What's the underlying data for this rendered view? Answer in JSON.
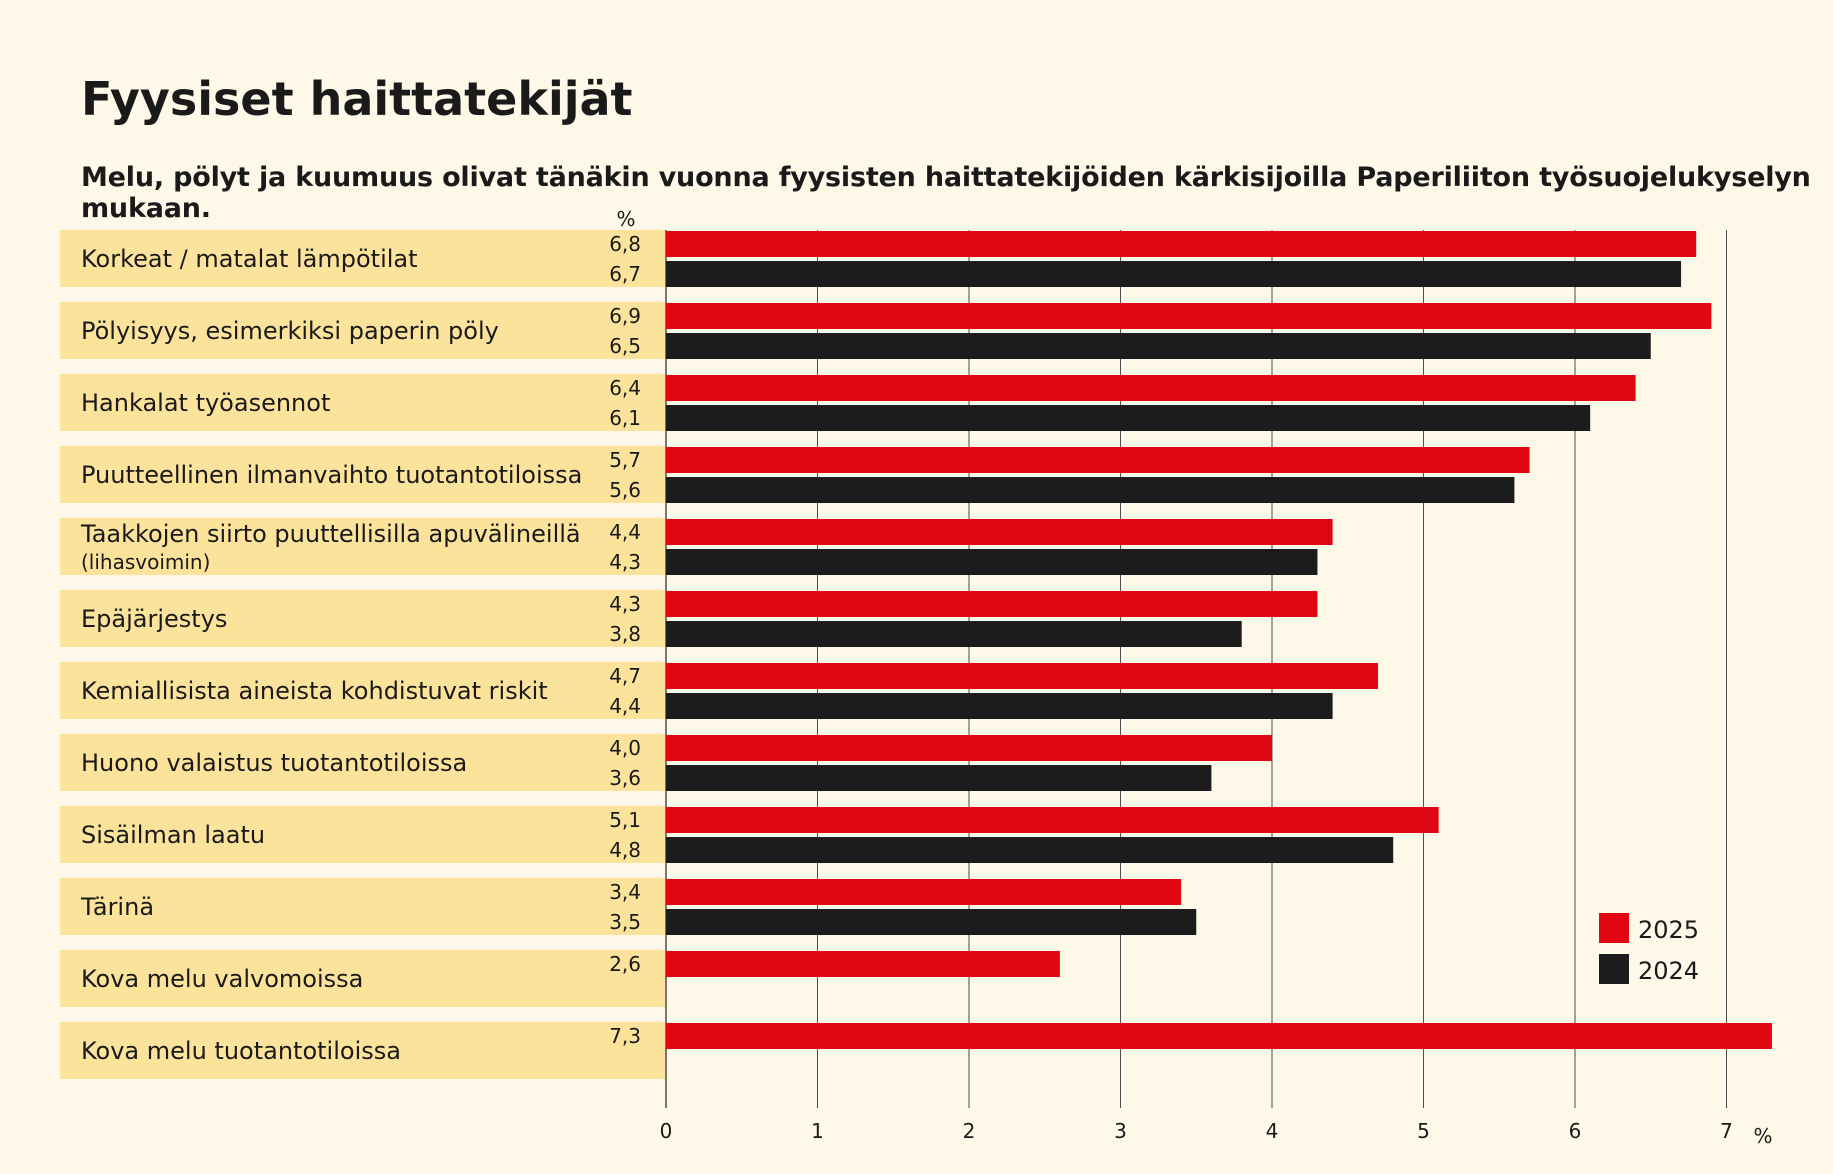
{
  "title": "Fyysiset haittatekijät",
  "subtitle": "Melu, pölyt ja kuumuus olivat tänäkin vuonna fyysisten haittatekijöiden kärkisijoilla Paperiliiton työsuojelukyselyn mukaan.",
  "colors": {
    "background": "#fdf8e8",
    "label_band": "#fbe39c",
    "series_2025": "#e00712",
    "series_2024": "#1c1c1c",
    "grid": "#4d4d4d"
  },
  "chart_data": {
    "type": "bar",
    "orientation": "horizontal",
    "value_unit_label": "%",
    "xlabel": "%",
    "xlim": [
      0,
      7
    ],
    "x_ticks": [
      "0",
      "1",
      "2",
      "3",
      "4",
      "5",
      "6",
      "7"
    ],
    "grid": "vertical",
    "legend_placement": "bottom-right",
    "categories": [
      [
        "Korkeat / matalat lämpötilat"
      ],
      [
        "Pölyisyys, esimerkiksi paperin pöly"
      ],
      [
        "Hankalat työasennot"
      ],
      [
        "Puutteellinen ilmanvaihto tuotantotiloissa"
      ],
      [
        "Taakkojen siirto puuttellisilla apuvälineillä",
        "(lihasvoimin)"
      ],
      [
        "Epäjärjestys"
      ],
      [
        "Kemiallisista aineista kohdistuvat riskit"
      ],
      [
        "Huono valaistus tuotantotiloissa"
      ],
      [
        "Sisäilman laatu"
      ],
      [
        "Tärinä"
      ],
      [
        "Kova melu valvomoissa"
      ],
      [
        "Kova melu tuotantotiloissa"
      ]
    ],
    "series": [
      {
        "name": "2025",
        "color": "#e00712",
        "values": [
          6.8,
          6.9,
          6.4,
          5.7,
          4.4,
          4.3,
          4.7,
          4.0,
          5.1,
          3.4,
          2.6,
          7.3
        ],
        "labels": [
          "6,8",
          "6,9",
          "6,4",
          "5,7",
          "4,4",
          "4,3",
          "4,7",
          "4,0",
          "5,1",
          "3,4",
          "2,6",
          "7,3"
        ]
      },
      {
        "name": "2024",
        "color": "#1c1c1c",
        "values": [
          6.7,
          6.5,
          6.1,
          5.6,
          4.3,
          3.8,
          4.4,
          3.6,
          4.8,
          3.5,
          null,
          null
        ],
        "labels": [
          "6,7",
          "6,5",
          "6,1",
          "5,6",
          "4,3",
          "3,8",
          "4,4",
          "3,6",
          "4,8",
          "3,5",
          "",
          ""
        ]
      }
    ]
  }
}
